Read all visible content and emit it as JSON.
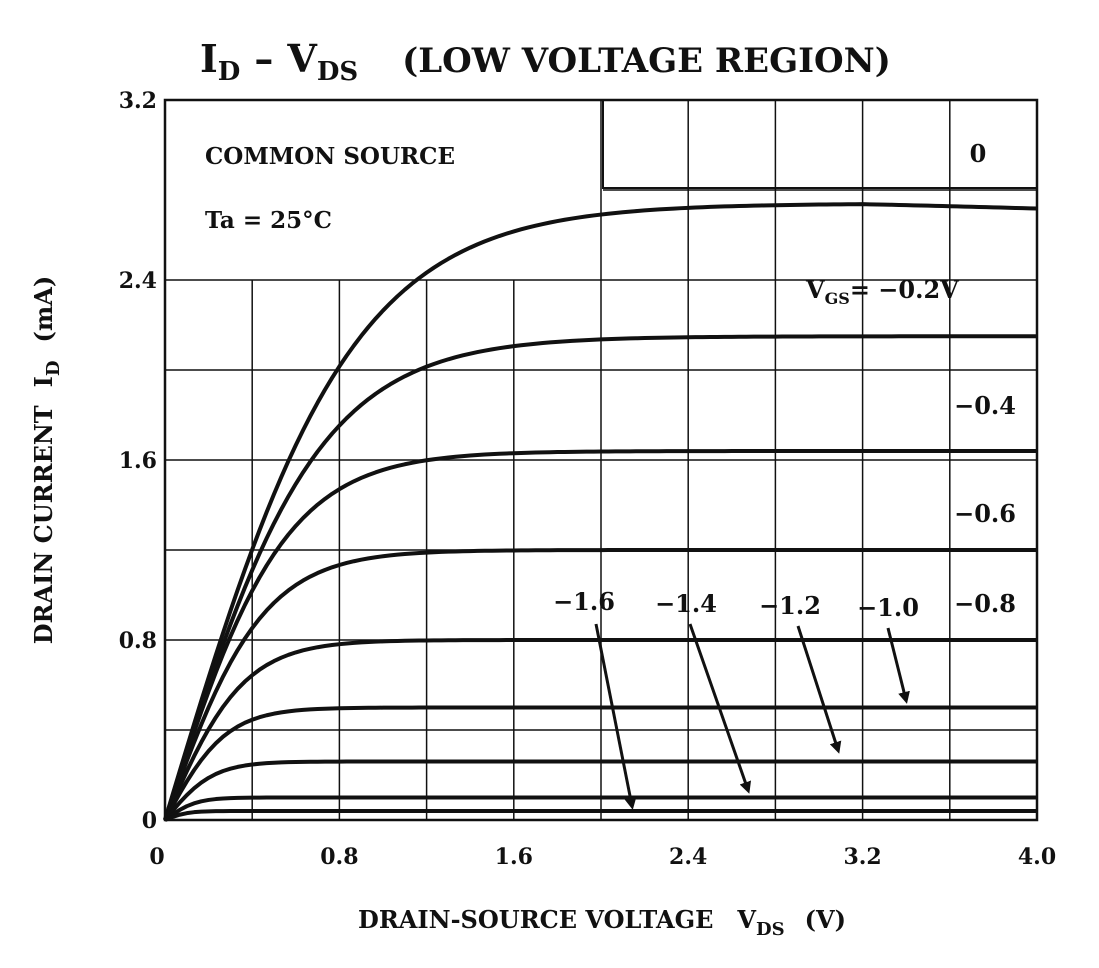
{
  "chart_data": {
    "type": "line",
    "title": {
      "i_main": "I",
      "i_sub": "D",
      "dash": "–",
      "v_main": "V",
      "v_sub": "DS",
      "suffix": "(LOW VOLTAGE REGION)"
    },
    "xlabel": {
      "main": "DRAIN-SOURCE VOLTAGE",
      "symbol": "V",
      "sub": "DS",
      "unit": "(V)"
    },
    "ylabel": {
      "main": "DRAIN CURRENT",
      "symbol": "I",
      "sub": "D",
      "unit": "(mA)"
    },
    "xlim": [
      0,
      4.0
    ],
    "ylim": [
      0,
      3.2
    ],
    "xticks": [
      0,
      0.8,
      1.6,
      2.4,
      3.2,
      4.0
    ],
    "xtick_labels": [
      "0",
      "0.8",
      "1.6",
      "2.4",
      "3.2",
      "4.0"
    ],
    "yticks": [
      0,
      0.8,
      1.6,
      2.4,
      3.2
    ],
    "ytick_labels": [
      "0",
      "0.8",
      "1.6",
      "2.4",
      "3.2"
    ],
    "grid": true,
    "annotations": {
      "condition_1": "COMMON SOURCE",
      "condition_2": "Ta = 25°C",
      "vgs_symbol": "V",
      "vgs_sub": "GS",
      "vgs_value": "= −0.2V"
    },
    "series": [
      {
        "vgs": 0,
        "label": "0",
        "isat": 2.74,
        "vk": 0.85
      },
      {
        "vgs": -0.2,
        "label": "",
        "isat": 2.15,
        "vk": 0.7
      },
      {
        "vgs": -0.4,
        "label": "−0.4",
        "isat": 1.64,
        "vk": 0.55
      },
      {
        "vgs": -0.6,
        "label": "−0.6",
        "isat": 1.2,
        "vk": 0.45
      },
      {
        "vgs": -0.8,
        "label": "−0.8",
        "isat": 0.8,
        "vk": 0.36
      },
      {
        "vgs": -1.0,
        "label": "−1.0",
        "isat": 0.5,
        "vk": 0.28
      },
      {
        "vgs": -1.2,
        "label": "−1.2",
        "isat": 0.26,
        "vk": 0.22
      },
      {
        "vgs": -1.4,
        "label": "−1.4",
        "isat": 0.1,
        "vk": 0.14
      },
      {
        "vgs": -1.6,
        "label": "−1.6",
        "isat": 0.04,
        "vk": 0.1
      }
    ]
  }
}
